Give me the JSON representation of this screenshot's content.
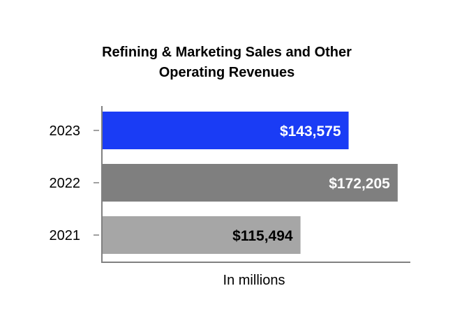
{
  "chart_data": {
    "type": "bar",
    "orientation": "horizontal",
    "title_lines": [
      "Refining & Marketing Sales and Other",
      "Operating Revenues"
    ],
    "categories": [
      "2023",
      "2022",
      "2021"
    ],
    "values": [
      143575,
      172205,
      115494
    ],
    "data_labels": [
      "$143,575",
      "$172,205",
      "$115,494"
    ],
    "bar_colors": [
      "#1a3cf5",
      "#7f7f7f",
      "#a6a6a6"
    ],
    "label_colors": [
      "#ffffff",
      "#ffffff",
      "#000000"
    ],
    "xlabel": "In millions",
    "xlim": [
      0,
      180000
    ],
    "grid": false,
    "legend": "none"
  }
}
